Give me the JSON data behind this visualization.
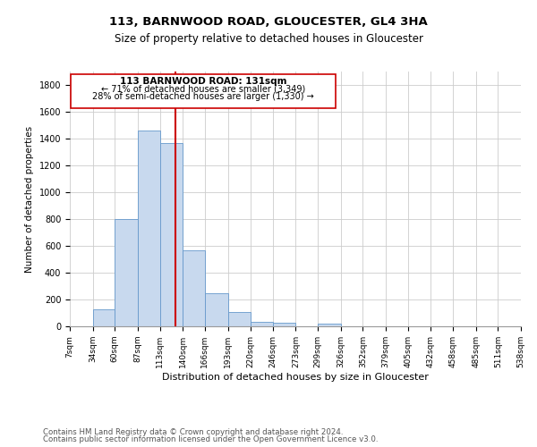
{
  "title": "113, BARNWOOD ROAD, GLOUCESTER, GL4 3HA",
  "subtitle": "Size of property relative to detached houses in Gloucester",
  "xlabel": "Distribution of detached houses by size in Gloucester",
  "ylabel": "Number of detached properties",
  "bar_color": "#c8d9ee",
  "bar_edgecolor": "#6699cc",
  "annotation_box_edgecolor": "#cc0000",
  "annotation_line_color": "#cc0000",
  "annotation_text_line1": "113 BARNWOOD ROAD: 131sqm",
  "annotation_text_line2": "← 71% of detached houses are smaller (3,349)",
  "annotation_text_line3": "28% of semi-detached houses are larger (1,330) →",
  "property_line_x": 131,
  "footer_line1": "Contains HM Land Registry data © Crown copyright and database right 2024.",
  "footer_line2": "Contains public sector information licensed under the Open Government Licence v3.0.",
  "bin_edges": [
    7,
    34,
    60,
    87,
    113,
    140,
    166,
    193,
    220,
    246,
    273,
    299,
    326,
    352,
    379,
    405,
    432,
    458,
    485,
    511,
    538
  ],
  "bin_counts": [
    0,
    130,
    800,
    1460,
    1370,
    570,
    250,
    105,
    35,
    25,
    0,
    20,
    0,
    0,
    0,
    0,
    0,
    0,
    0,
    0
  ],
  "ylim": [
    0,
    1900
  ],
  "yticks": [
    0,
    200,
    400,
    600,
    800,
    1000,
    1200,
    1400,
    1600,
    1800
  ],
  "background_color": "#ffffff",
  "grid_color": "#cccccc"
}
